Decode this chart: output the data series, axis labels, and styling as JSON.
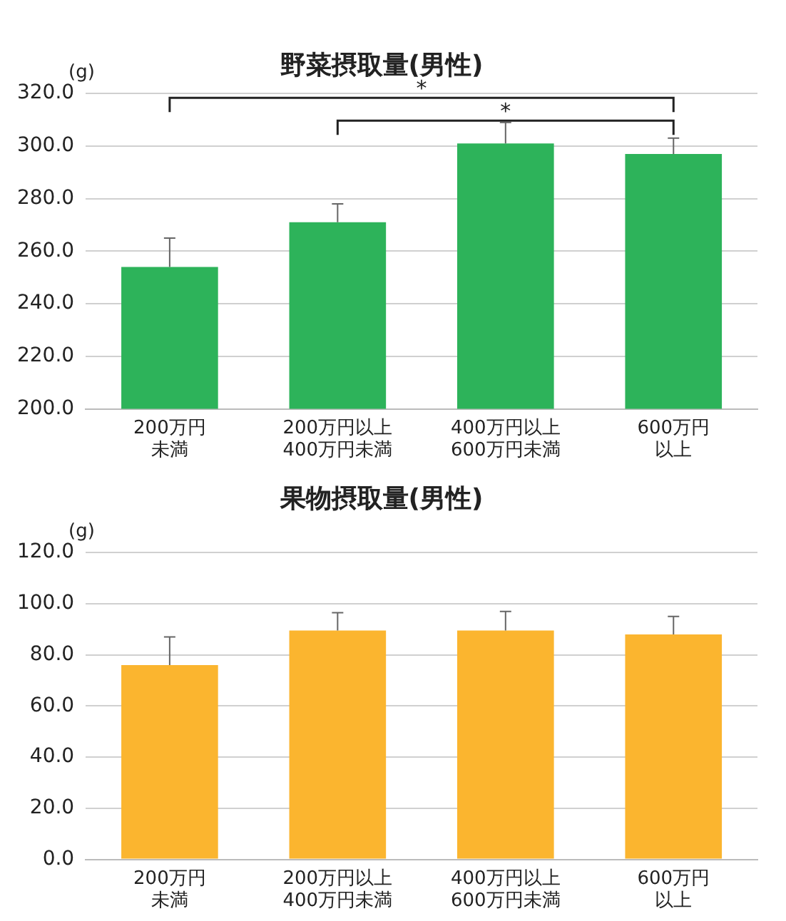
{
  "chart_data": [
    {
      "type": "bar",
      "title": "野菜摂取量(男性)",
      "ylabel": "(g)",
      "categories": [
        "200万円未満",
        "200万円以上400万円未満",
        "400万円以上600万円未満",
        "600万円以上"
      ],
      "values": [
        254,
        271,
        301,
        297
      ],
      "color": "#2db35a",
      "errors": [
        [
          254,
          265
        ],
        [
          271,
          278
        ],
        [
          301,
          309
        ],
        [
          297,
          303
        ]
      ],
      "ylim": [
        200,
        320
      ],
      "yticks": [
        {
          "value": 200,
          "label": "200.0"
        },
        {
          "value": 220,
          "label": "220.0"
        },
        {
          "value": 240,
          "label": "240.0"
        },
        {
          "value": 260,
          "label": "260.0"
        },
        {
          "value": 280,
          "label": "280.0"
        },
        {
          "value": 300,
          "label": "300.0"
        },
        {
          "value": 320,
          "label": "320.0"
        }
      ],
      "grid": "y",
      "annotations": [
        "*",
        "*"
      ]
    },
    {
      "type": "bar",
      "title": "果物摂取量(男性)",
      "ylabel": "(g)",
      "categories": [
        "200万円未満",
        "200万円以上400万円未満",
        "400万円以上600万円未満",
        "600万円以上"
      ],
      "values": [
        76,
        89.5,
        89.5,
        88
      ],
      "color": "#fbb52f",
      "errors": [
        [
          76,
          87
        ],
        [
          89.5,
          96.5
        ],
        [
          89.5,
          97
        ],
        [
          88,
          95
        ]
      ],
      "ylim": [
        0,
        120
      ],
      "yticks": [
        {
          "value": 0,
          "label": "0.0"
        },
        {
          "value": 20,
          "label": "20.0"
        },
        {
          "value": 40,
          "label": "40.0"
        },
        {
          "value": 60,
          "label": "60.0"
        },
        {
          "value": 80,
          "label": "80.0"
        },
        {
          "value": 100,
          "label": "100.0"
        },
        {
          "value": 120,
          "label": "120.0"
        }
      ],
      "grid": "y"
    }
  ]
}
